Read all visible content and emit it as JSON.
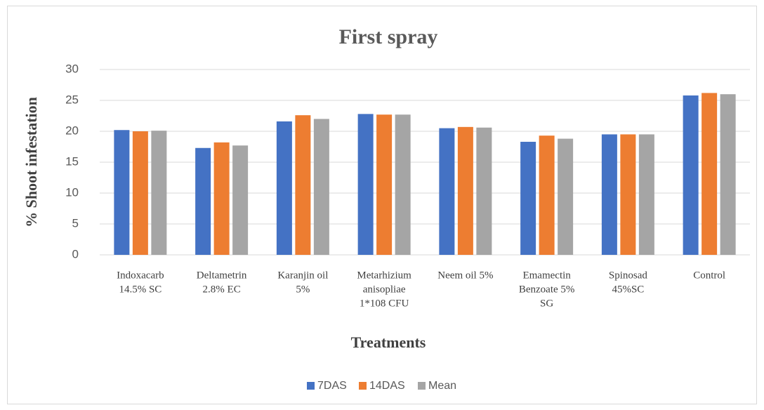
{
  "chart_data": {
    "type": "bar",
    "title": "First spray",
    "x_label": "Treatments",
    "y_label": "% Shoot infestation",
    "categories": [
      [
        "Indoxacarb",
        "14.5% SC"
      ],
      [
        "Deltametrin",
        "2.8% EC"
      ],
      [
        "Karanjin oil",
        "5%"
      ],
      [
        "Metarhizium",
        "anisopliae",
        "1*108 CFU"
      ],
      [
        "Neem oil 5%"
      ],
      [
        "Emamectin",
        "Benzoate 5%",
        "SG"
      ],
      [
        "Spinosad",
        "45%SC"
      ],
      [
        "Control"
      ]
    ],
    "series": [
      {
        "name": "7DAS",
        "color": "#4472c4",
        "values": [
          20.2,
          17.3,
          21.6,
          22.8,
          20.5,
          18.3,
          19.5,
          25.8
        ]
      },
      {
        "name": "14DAS",
        "color": "#ed7d31",
        "values": [
          20.0,
          18.2,
          22.6,
          22.7,
          20.7,
          19.3,
          19.5,
          26.2
        ]
      },
      {
        "name": "Mean",
        "color": "#a5a5a5",
        "values": [
          20.1,
          17.7,
          22.0,
          22.7,
          20.6,
          18.8,
          19.5,
          26.0
        ]
      }
    ],
    "ylim": [
      0,
      30
    ],
    "yticks": [
      0,
      5,
      10,
      15,
      20,
      25,
      30
    ],
    "grid": true,
    "legend": "bottom"
  }
}
